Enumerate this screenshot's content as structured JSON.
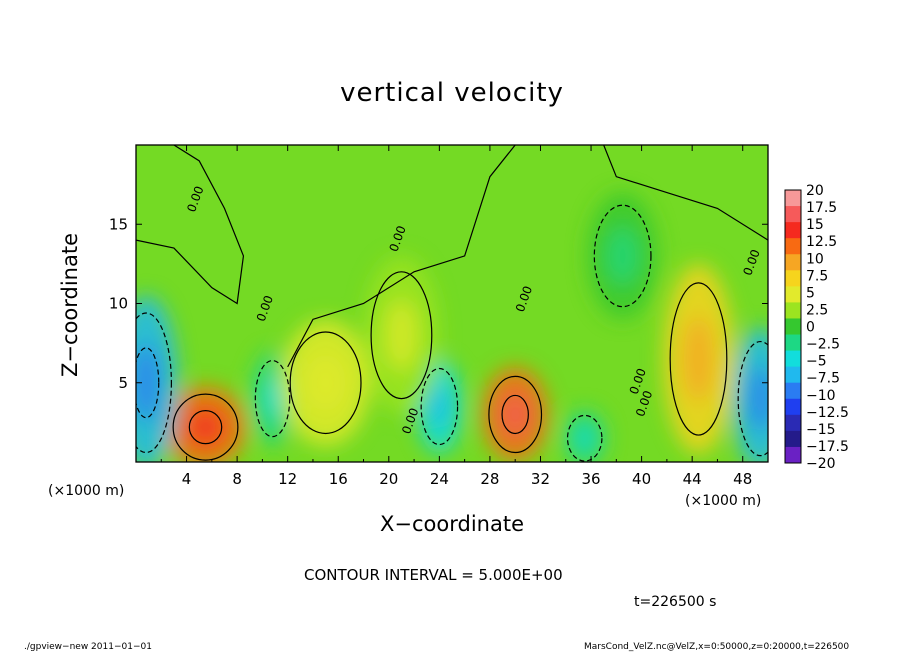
{
  "title": "vertical velocity",
  "x_axis": {
    "label": "X−coordinate",
    "unit_left": "(×1000 m)",
    "unit_right": "(×1000 m)"
  },
  "y_axis": {
    "label": "Z−coordinate"
  },
  "contour_interval": "CONTOUR INTERVAL = 5.000E+00",
  "time": "t=226500 s",
  "footer": {
    "left": "./gpview−new   2011−01−01",
    "right": "MarsCond_VelZ.nc@VelZ,x=0:50000,z=0:20000,t=226500"
  },
  "chart_data": {
    "type": "heatmap",
    "title": "vertical velocity",
    "xlabel": "X−coordinate",
    "ylabel": "Z−coordinate",
    "x_unit": "(×1000 m)",
    "xlim": [
      0,
      50
    ],
    "ylim": [
      0,
      20
    ],
    "x_ticks": [
      4,
      8,
      12,
      16,
      20,
      24,
      28,
      32,
      36,
      40,
      44,
      48
    ],
    "y_ticks": [
      5,
      10,
      15
    ],
    "contour_interval": 5.0,
    "contour_labels": [
      "0.00",
      "0.00",
      "0.00",
      "0.00",
      "0.00",
      "0.00",
      "0.00",
      "0.00"
    ],
    "colorbar": {
      "levels": [
        "20",
        "17.5",
        "15",
        "12.5",
        "10",
        "7.5",
        "5",
        "2.5",
        "0",
        "−2.5",
        "−5",
        "−7.5",
        "−10",
        "−12.5",
        "−15",
        "−17.5",
        "−20"
      ],
      "colors": [
        "#f79999",
        "#f65a5a",
        "#f52a1f",
        "#f86a12",
        "#f6a623",
        "#f6d41d",
        "#e2ea2c",
        "#9ce420",
        "#35c82f",
        "#1dd884",
        "#12dddc",
        "#20b9ee",
        "#2a7cf2",
        "#1f3ff0",
        "#2a2ab4",
        "#241b8a",
        "#6a21c4"
      ]
    },
    "blobs": [
      {
        "x": 5.5,
        "z": 2.2,
        "rx": 3.2,
        "rz": 2.6,
        "value": 10
      },
      {
        "x": 30.0,
        "z": 3.0,
        "rx": 2.6,
        "rz": 3.0,
        "value": 12
      },
      {
        "x": 44.5,
        "z": 6.5,
        "rx": 2.8,
        "rz": 6.0,
        "value": 7
      },
      {
        "x": 0.8,
        "z": 5.0,
        "rx": 2.5,
        "rz": 5.5,
        "value": -9
      },
      {
        "x": 49.4,
        "z": 4.0,
        "rx": 2.2,
        "rz": 4.5,
        "value": -8
      },
      {
        "x": 10.8,
        "z": 4.0,
        "rx": 1.7,
        "rz": 3.0,
        "value": -5
      },
      {
        "x": 24.0,
        "z": 3.5,
        "rx": 1.8,
        "rz": 3.0,
        "value": -6
      },
      {
        "x": 35.5,
        "z": 1.5,
        "rx": 1.7,
        "rz": 1.8,
        "value": -4
      },
      {
        "x": 38.5,
        "z": 13.0,
        "rx": 2.8,
        "rz": 4.0,
        "value": -2
      },
      {
        "x": 15.0,
        "z": 5.0,
        "rx": 3.5,
        "rz": 4.0,
        "value": 3
      },
      {
        "x": 21.0,
        "z": 8.0,
        "rx": 3.0,
        "rz": 5.0,
        "value": 2
      }
    ]
  }
}
